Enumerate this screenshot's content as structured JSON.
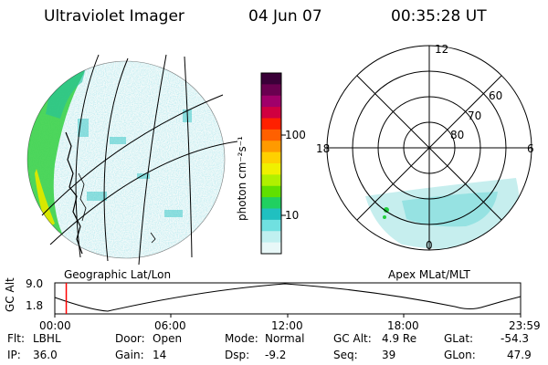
{
  "header": {
    "title": "Ultraviolet Imager",
    "date": "04 Jun 07",
    "time": "00:35:28 UT"
  },
  "colorbar": {
    "unit_label": "photon cm⁻²s⁻¹",
    "ticks": [
      "100",
      "10"
    ],
    "colors": [
      "#3a0038",
      "#6a0050",
      "#a0006a",
      "#d00040",
      "#ff2000",
      "#ff6000",
      "#ff9a00",
      "#ffd000",
      "#f0f000",
      "#b0f000",
      "#60e000",
      "#20d060",
      "#20c0c0",
      "#70e0e0",
      "#c0f0f0",
      "#e8f8f8"
    ]
  },
  "polar": {
    "mlt_labels": {
      "top": "12",
      "left": "18",
      "right": "6",
      "bottom": "0"
    },
    "lat_labels": [
      "60",
      "70",
      "80"
    ]
  },
  "map_labels": {
    "left": "Geographic Lat/Lon",
    "right": "Apex MLat/MLT"
  },
  "timeline": {
    "ylabel": "GC Alt",
    "yticks": [
      "9.0",
      "1.8"
    ],
    "xticks": [
      "00:00",
      "06:00",
      "12:00",
      "18:00",
      "23:59"
    ],
    "marker_time_hours": 0.59,
    "marker_color": "#ff0000"
  },
  "info": {
    "row1": [
      {
        "label": "Flt:",
        "value": "LBHL"
      },
      {
        "label": "Door:",
        "value": "Open"
      },
      {
        "label": "Mode:",
        "value": "Normal"
      },
      {
        "label": "GC Alt:",
        "value": "4.9 Re"
      },
      {
        "label": "GLat:",
        "value": "-54.3"
      }
    ],
    "row2": [
      {
        "label": "IP:",
        "value": "36.0"
      },
      {
        "label": "Gain:",
        "value": "14"
      },
      {
        "label": "Dsp:",
        "value": "-9.2"
      },
      {
        "label": "Seq:",
        "value": "39"
      },
      {
        "label": "GLon:",
        "value": "47.9"
      }
    ]
  }
}
